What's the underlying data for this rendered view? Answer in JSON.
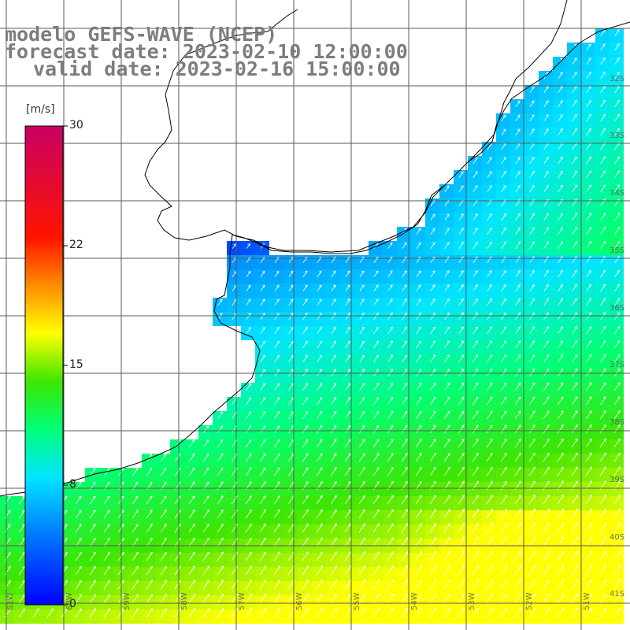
{
  "title": {
    "line1": "modelo GEFS-WAVE (NCEP)",
    "line2": "forecast date: 2023-02-10 12:00:00",
    "line3": "valid date: 2023-02-16 15:00:00"
  },
  "colorbar": {
    "unit": "[m/s]",
    "ticks": [
      {
        "label": "30",
        "value": 30
      },
      {
        "label": "22",
        "value": 22
      },
      {
        "label": "15",
        "value": 15
      },
      {
        "label": "8",
        "value": 8
      },
      {
        "label": "0",
        "value": 0
      }
    ],
    "colors": [
      "#0000ff",
      "#0070ff",
      "#00e0ff",
      "#00ff60",
      "#40e000",
      "#ffff00",
      "#ff8000",
      "#ff0000",
      "#c00060"
    ]
  },
  "lat_labels": [
    "32S",
    "33S",
    "34S",
    "35S",
    "36S",
    "37S",
    "38S",
    "39S",
    "40S",
    "41S"
  ],
  "lon_labels": [
    "61W",
    "60W",
    "59W",
    "58W",
    "57W",
    "56W",
    "55W",
    "54W",
    "53W",
    "52W",
    "51W"
  ],
  "colors": {
    "land": "#ffffff",
    "coast": "#000000",
    "grid": "#5a5a5a",
    "arrow": "#ffffff"
  }
}
